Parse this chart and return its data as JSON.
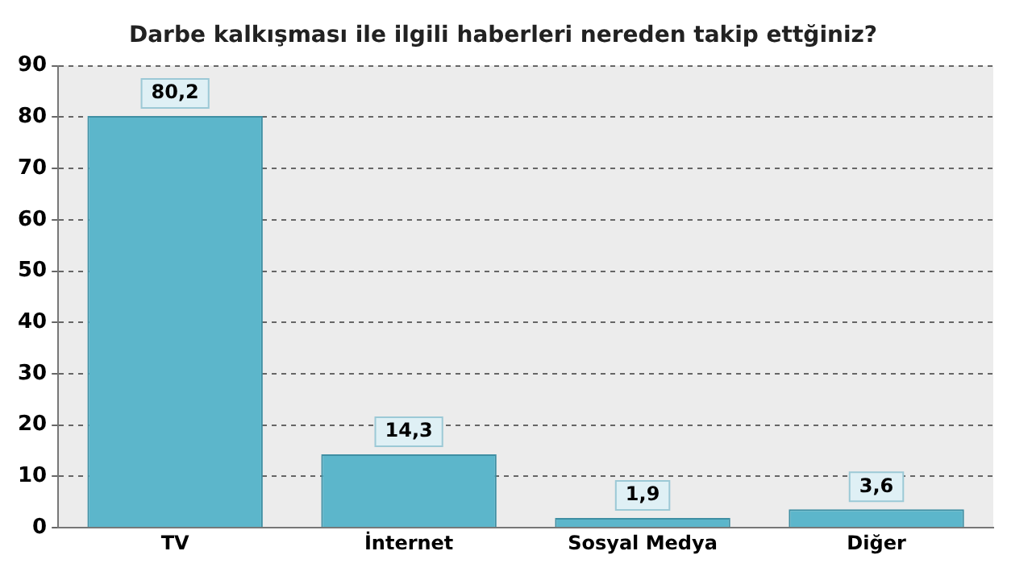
{
  "chart_data": {
    "type": "bar",
    "title": "Darbe kalkışması ile ilgili haberleri nereden takip ettğiniz?",
    "categories": [
      "TV",
      "İnternet",
      "Sosyal Medya",
      "Diğer"
    ],
    "values": [
      80.2,
      14.3,
      1.9,
      3.6
    ],
    "value_labels": [
      "80,2",
      "14,3",
      "1,9",
      "3,6"
    ],
    "color": "#5cb6cb",
    "ylim": [
      0,
      90
    ],
    "yticks": [
      0,
      10,
      20,
      30,
      40,
      50,
      60,
      70,
      80,
      90
    ],
    "grid": "y",
    "legend": false
  }
}
